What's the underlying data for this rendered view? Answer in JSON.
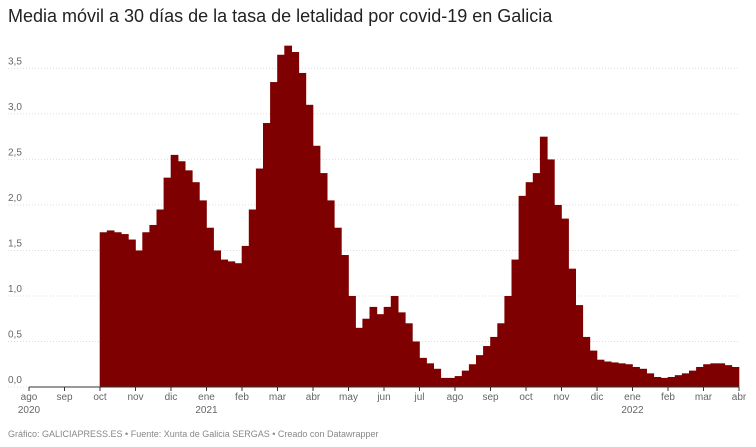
{
  "chart_data": {
    "type": "bar",
    "title": "Media móvil a 30 días de la tasa de letalidad por covid-19 en Galicia",
    "source": "Gráfico: GALICIAPRESS.ES • Fuente: Xunta de Galicia SERGAS • Creado con Datawrapper",
    "color": "#7f0000",
    "grid": true,
    "bar_width": 0.2,
    "x": [
      2.1,
      2.3,
      2.5,
      2.7,
      2.9,
      3.1,
      3.3,
      3.5,
      3.7,
      3.9,
      4.1,
      4.3,
      4.5,
      4.7,
      4.9,
      5.1,
      5.3,
      5.5,
      5.7,
      5.9,
      6.1,
      6.3,
      6.5,
      6.7,
      6.9,
      7.1,
      7.3,
      7.5,
      7.7,
      7.9,
      8.1,
      8.3,
      8.5,
      8.7,
      8.9,
      9.1,
      9.3,
      9.5,
      9.7,
      9.9,
      10.1,
      10.3,
      10.5,
      10.7,
      10.9,
      11.1,
      11.3,
      11.5,
      11.7,
      11.9,
      12.1,
      12.3,
      12.5,
      12.7,
      12.9,
      13.1,
      13.3,
      13.5,
      13.7,
      13.9,
      14.1,
      14.3,
      14.5,
      14.7,
      14.9,
      15.1,
      15.3,
      15.5,
      15.7,
      15.9,
      16.1,
      16.3,
      16.5,
      16.7,
      16.9,
      17.1,
      17.3,
      17.5,
      17.7,
      17.9,
      18.1,
      18.3,
      18.5,
      18.7,
      18.9,
      19.1,
      19.3,
      19.5,
      19.7,
      19.9
    ],
    "values": [
      1.7,
      1.72,
      1.7,
      1.68,
      1.62,
      1.5,
      1.7,
      1.78,
      1.95,
      2.3,
      2.55,
      2.48,
      2.38,
      2.25,
      2.05,
      1.75,
      1.5,
      1.4,
      1.38,
      1.36,
      1.55,
      1.95,
      2.4,
      2.9,
      3.35,
      3.65,
      3.75,
      3.68,
      3.45,
      3.1,
      2.65,
      2.35,
      2.05,
      1.75,
      1.45,
      1.0,
      0.65,
      0.75,
      0.88,
      0.8,
      0.88,
      1.0,
      0.82,
      0.7,
      0.5,
      0.32,
      0.26,
      0.2,
      0.1,
      0.1,
      0.12,
      0.18,
      0.25,
      0.35,
      0.45,
      0.55,
      0.7,
      1.0,
      1.4,
      2.1,
      2.25,
      2.35,
      2.75,
      2.5,
      2.0,
      1.85,
      1.3,
      0.9,
      0.55,
      0.4,
      0.3,
      0.28,
      0.27,
      0.26,
      0.25,
      0.22,
      0.2,
      0.15,
      0.11,
      0.1,
      0.11,
      0.13,
      0.15,
      0.18,
      0.22,
      0.25,
      0.26,
      0.26,
      0.24,
      0.22
    ],
    "xlim": [
      0,
      20
    ],
    "xticks": [
      {
        "value": 0,
        "label": "ago"
      },
      {
        "value": 1,
        "label": "sep"
      },
      {
        "value": 2,
        "label": "oct"
      },
      {
        "value": 3,
        "label": "nov"
      },
      {
        "value": 4,
        "label": "dic"
      },
      {
        "value": 5,
        "label": "ene"
      },
      {
        "value": 6,
        "label": "feb"
      },
      {
        "value": 7,
        "label": "mar"
      },
      {
        "value": 8,
        "label": "abr"
      },
      {
        "value": 9,
        "label": "may"
      },
      {
        "value": 10,
        "label": "jun"
      },
      {
        "value": 11,
        "label": "jul"
      },
      {
        "value": 12,
        "label": "ago"
      },
      {
        "value": 13,
        "label": "sep"
      },
      {
        "value": 14,
        "label": "oct"
      },
      {
        "value": 15,
        "label": "nov"
      },
      {
        "value": 16,
        "label": "dic"
      },
      {
        "value": 17,
        "label": "ene"
      },
      {
        "value": 18,
        "label": "feb"
      },
      {
        "value": 19,
        "label": "mar"
      },
      {
        "value": 20,
        "label": "abr"
      }
    ],
    "year_labels": [
      {
        "value": 0,
        "label": "2020"
      },
      {
        "value": 5,
        "label": "2021"
      },
      {
        "value": 17,
        "label": "2022"
      }
    ],
    "ylim": [
      0,
      3.9
    ],
    "yticks": [
      {
        "value": 0,
        "label": "0,0"
      },
      {
        "value": 0.5,
        "label": "0,5"
      },
      {
        "value": 1,
        "label": "1,0"
      },
      {
        "value": 1.5,
        "label": "1,5"
      },
      {
        "value": 2,
        "label": "2,0"
      },
      {
        "value": 2.5,
        "label": "2,5"
      },
      {
        "value": 3,
        "label": "3,0"
      },
      {
        "value": 3.5,
        "label": "3,5"
      }
    ]
  }
}
